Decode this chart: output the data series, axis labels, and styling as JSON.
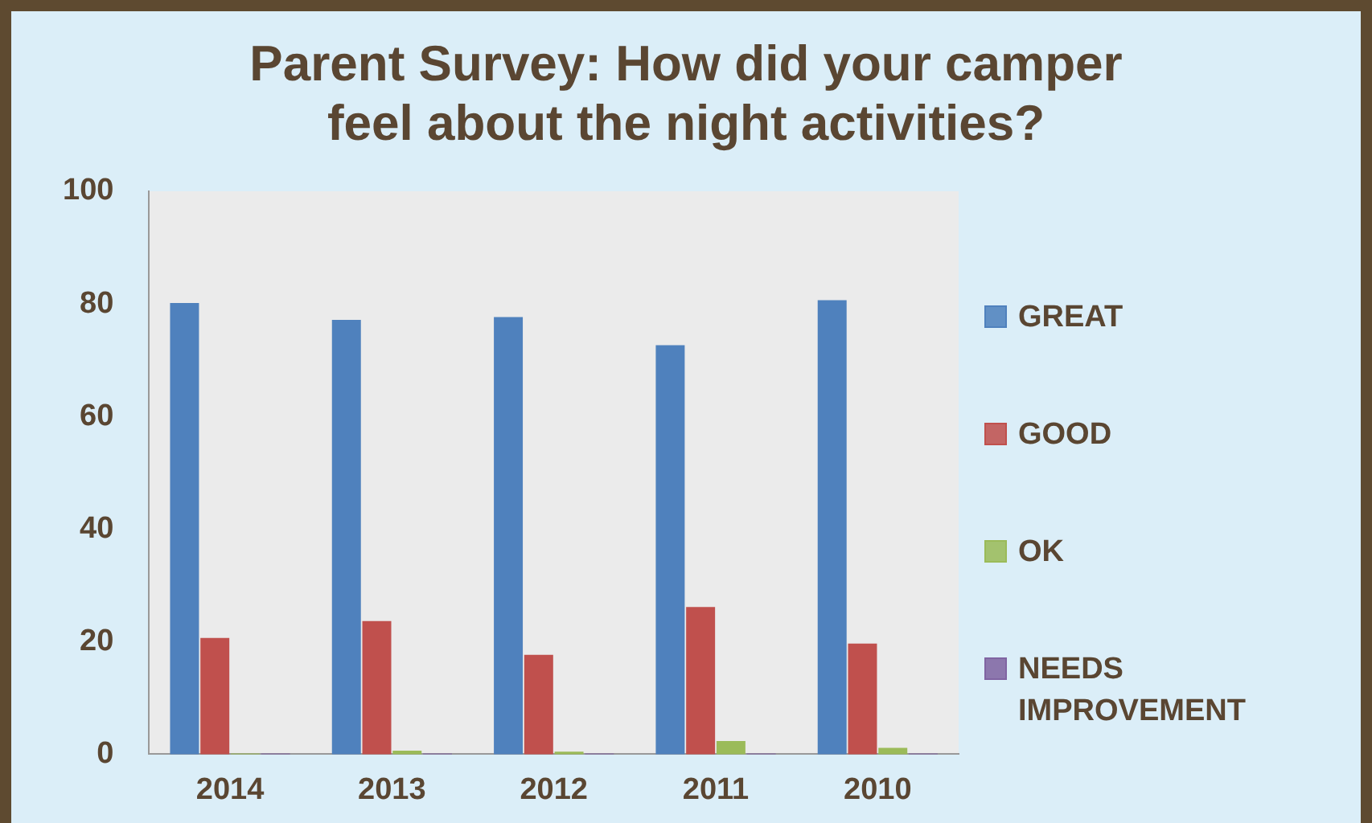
{
  "chart_data": {
    "type": "bar",
    "title": [
      "Parent Survey: How did your camper",
      "feel about the night activities?"
    ],
    "categories": [
      "2014",
      "2013",
      "2012",
      "2011",
      "2010"
    ],
    "series": [
      {
        "name": "GREAT",
        "color": "#4f81bd",
        "values": [
          80,
          77,
          77.5,
          72.5,
          80.5
        ]
      },
      {
        "name": "GOOD",
        "color": "#c0504d",
        "values": [
          20.5,
          23.5,
          17.5,
          26,
          19.5
        ]
      },
      {
        "name": "OK",
        "color": "#9bbb59",
        "values": [
          0,
          0.5,
          0.3,
          2.2,
          1
        ]
      },
      {
        "name": "NEEDS IMPROVEMENT",
        "color": "#8064a2",
        "values": [
          0,
          0,
          0,
          0,
          0
        ]
      }
    ],
    "ylim": [
      0,
      100
    ],
    "yticks": [
      0,
      20,
      40,
      60,
      80,
      100
    ],
    "grid": false,
    "legend": "right"
  }
}
